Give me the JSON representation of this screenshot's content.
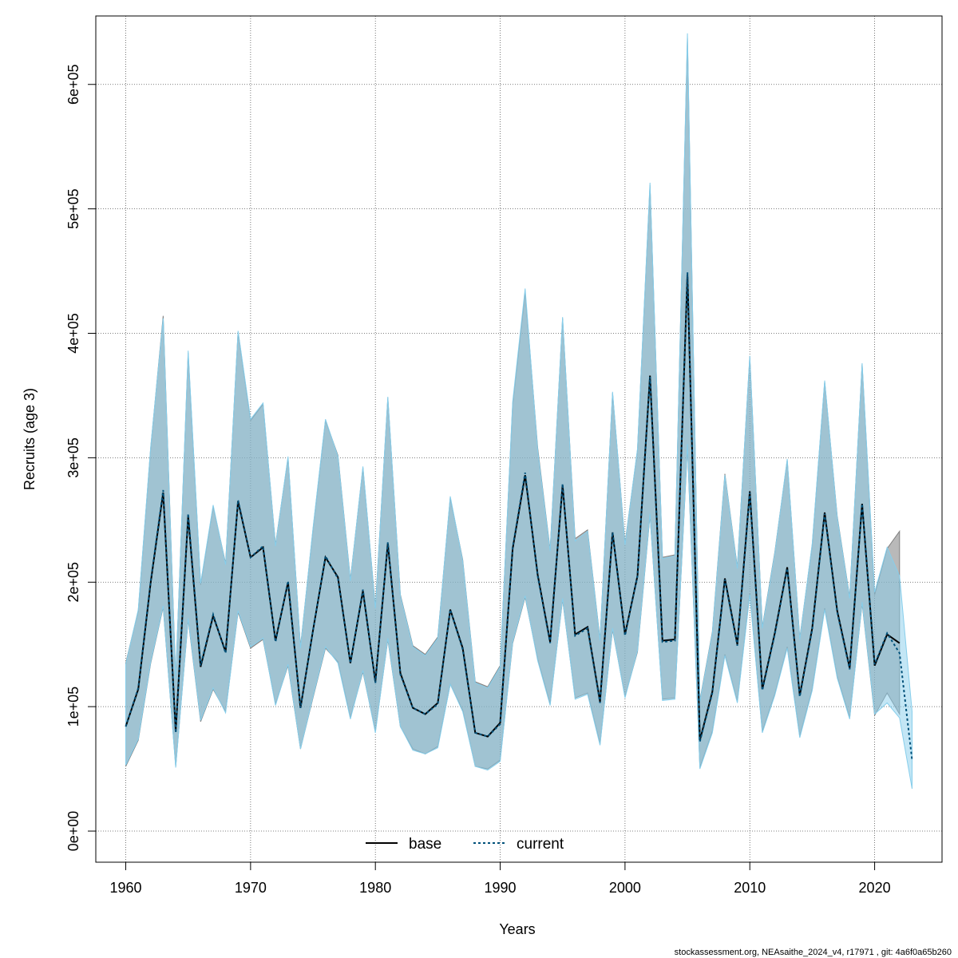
{
  "chart_data": {
    "type": "line",
    "xlabel": "Years",
    "ylabel": "Recruits (age 3)",
    "xlim": [
      1957.6,
      1964.6
    ],
    "ylim": [
      -25000,
      655000
    ],
    "xticks": [
      1960,
      1970,
      1980,
      1990,
      2000,
      2010,
      2020
    ],
    "xtick_labels": [
      "1960",
      "1970",
      "1980",
      "1990",
      "2000",
      "2010",
      "2020"
    ],
    "yticks": [
      0,
      100000,
      200000,
      300000,
      400000,
      500000,
      600000
    ],
    "ytick_labels": [
      "0e+00",
      "1e+05",
      "2e+05",
      "3e+05",
      "4e+05",
      "5e+05",
      "6e+05"
    ],
    "grid": true,
    "legend_placement": "bottom-center",
    "series": [
      {
        "name": "base",
        "color": "#000000",
        "band_color": "#808080",
        "x": [
          1960,
          1961,
          1962,
          1963,
          1964,
          1965,
          1966,
          1967,
          1968,
          1969,
          1970,
          1971,
          1972,
          1973,
          1974,
          1975,
          1976,
          1977,
          1978,
          1979,
          1980,
          1981,
          1982,
          1983,
          1984,
          1985,
          1986,
          1987,
          1988,
          1989,
          1990,
          1991,
          1992,
          1993,
          1994,
          1995,
          1996,
          1997,
          1998,
          1999,
          2000,
          2001,
          2002,
          2003,
          2004,
          2005,
          2006,
          2007,
          2008,
          2009,
          2010,
          2011,
          2012,
          2013,
          2014,
          2015,
          2016,
          2017,
          2018,
          2019,
          2020,
          2021,
          2022
        ],
        "values": [
          84000,
          114000,
          200000,
          272000,
          80000,
          253000,
          132000,
          173000,
          144000,
          265000,
          220000,
          228000,
          153000,
          200000,
          99000,
          161000,
          220000,
          204000,
          135000,
          193000,
          120000,
          231000,
          127000,
          99000,
          94000,
          103000,
          178000,
          147000,
          79000,
          76000,
          87000,
          227000,
          286000,
          206000,
          152000,
          278000,
          158000,
          164000,
          104000,
          240000,
          158000,
          205000,
          366000,
          153000,
          154000,
          447000,
          73000,
          112000,
          203000,
          150000,
          273000,
          114000,
          159000,
          212000,
          109000,
          163000,
          256000,
          177000,
          131000,
          263000,
          133000,
          158000,
          151000
        ],
        "lower": [
          52000,
          73000,
          135000,
          180000,
          52000,
          170000,
          88000,
          114000,
          96000,
          176000,
          147000,
          154000,
          102000,
          133000,
          66000,
          107000,
          147000,
          136000,
          91000,
          128000,
          80000,
          154000,
          84000,
          66000,
          62000,
          68000,
          118000,
          97000,
          52000,
          50000,
          57000,
          151000,
          188000,
          138000,
          102000,
          186000,
          107000,
          111000,
          70000,
          162000,
          108000,
          144000,
          254000,
          106000,
          107000,
          309000,
          51000,
          80000,
          142000,
          104000,
          191000,
          80000,
          110000,
          148000,
          76000,
          114000,
          179000,
          124000,
          91000,
          183000,
          93000,
          111000,
          94000
        ],
        "upper": [
          135000,
          177000,
          308000,
          414000,
          123000,
          384000,
          198000,
          261000,
          215000,
          401000,
          330000,
          343000,
          230000,
          300000,
          148000,
          242000,
          330000,
          302000,
          202000,
          292000,
          180000,
          348000,
          190000,
          149000,
          142000,
          156000,
          268000,
          218000,
          120000,
          116000,
          133000,
          343000,
          433000,
          308000,
          226000,
          412000,
          235000,
          242000,
          154000,
          352000,
          231000,
          306000,
          519000,
          220000,
          222000,
          637000,
          105000,
          160000,
          287000,
          212000,
          381000,
          164000,
          224000,
          298000,
          155000,
          230000,
          361000,
          253000,
          188000,
          375000,
          190000,
          227000,
          241000
        ]
      },
      {
        "name": "current",
        "color": "#00517a",
        "band_color": "#87ceeb",
        "x": [
          1960,
          1961,
          1962,
          1963,
          1964,
          1965,
          1966,
          1967,
          1968,
          1969,
          1970,
          1971,
          1972,
          1973,
          1974,
          1975,
          1976,
          1977,
          1978,
          1979,
          1980,
          1981,
          1982,
          1983,
          1984,
          1985,
          1986,
          1987,
          1988,
          1989,
          1990,
          1991,
          1992,
          1993,
          1994,
          1995,
          1996,
          1997,
          1998,
          1999,
          2000,
          2001,
          2002,
          2003,
          2004,
          2005,
          2006,
          2007,
          2008,
          2009,
          2010,
          2011,
          2012,
          2013,
          2014,
          2015,
          2016,
          2017,
          2018,
          2019,
          2020,
          2021,
          2022,
          2023
        ],
        "values": [
          84000,
          115000,
          201000,
          274000,
          79000,
          255000,
          133000,
          174000,
          143000,
          266000,
          220000,
          229000,
          152000,
          201000,
          99000,
          161000,
          221000,
          203000,
          135000,
          194000,
          119000,
          232000,
          126000,
          99000,
          94000,
          102000,
          178000,
          146000,
          79000,
          76000,
          86000,
          228000,
          288000,
          205000,
          151000,
          279000,
          157000,
          163000,
          103000,
          240000,
          157000,
          205000,
          365000,
          152000,
          153000,
          449000,
          72000,
          111000,
          202000,
          149000,
          272000,
          113000,
          158000,
          211000,
          108000,
          162000,
          255000,
          176000,
          130000,
          263000,
          134000,
          159000,
          143000,
          57000
        ],
        "lower": [
          53000,
          74000,
          136000,
          181000,
          51000,
          171000,
          89000,
          115000,
          95000,
          177000,
          148000,
          155000,
          101000,
          134000,
          66000,
          108000,
          148000,
          135000,
          90000,
          129000,
          79000,
          155000,
          84000,
          65000,
          62000,
          67000,
          118000,
          96000,
          52000,
          49000,
          56000,
          152000,
          189000,
          137000,
          101000,
          187000,
          106000,
          110000,
          69000,
          163000,
          107000,
          145000,
          255000,
          105000,
          106000,
          311000,
          50000,
          79000,
          141000,
          103000,
          190000,
          79000,
          109000,
          147000,
          75000,
          113000,
          178000,
          123000,
          90000,
          184000,
          94000,
          103000,
          91000,
          34000
        ],
        "upper": [
          134000,
          178000,
          309000,
          412000,
          122000,
          386000,
          199000,
          262000,
          214000,
          402000,
          331000,
          344000,
          229000,
          301000,
          147000,
          243000,
          331000,
          301000,
          201000,
          293000,
          179000,
          349000,
          189000,
          148000,
          141000,
          155000,
          269000,
          217000,
          119000,
          115000,
          132000,
          345000,
          436000,
          306000,
          225000,
          413000,
          233000,
          241000,
          153000,
          353000,
          230000,
          307000,
          521000,
          219000,
          221000,
          641000,
          104000,
          159000,
          286000,
          211000,
          382000,
          163000,
          223000,
          299000,
          154000,
          231000,
          362000,
          252000,
          187000,
          376000,
          192000,
          228000,
          205000,
          96000
        ]
      }
    ]
  },
  "footer": {
    "text": "stockassessment.org, NEAsaithe_2024_v4, r17971 , git: 4a6f0a65b260"
  }
}
